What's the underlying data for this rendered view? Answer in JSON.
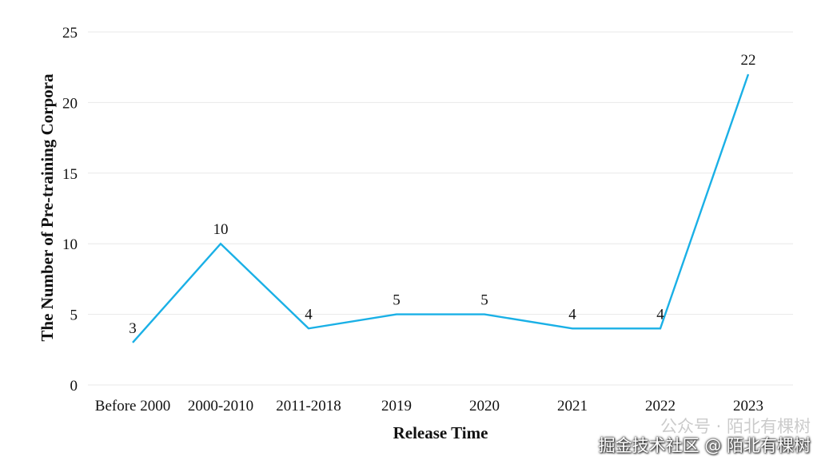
{
  "chart_data": {
    "type": "line",
    "categories": [
      "Before 2000",
      "2000-2010",
      "2011-2018",
      "2019",
      "2020",
      "2021",
      "2022",
      "2023"
    ],
    "values": [
      3,
      10,
      4,
      5,
      5,
      4,
      4,
      22
    ],
    "data_labels": [
      "3",
      "10",
      "4",
      "5",
      "5",
      "4",
      "4",
      "22"
    ],
    "title": "",
    "xlabel": "Release Time",
    "ylabel": "The Number of Pre-training Corpora",
    "ylim": [
      0,
      25
    ],
    "yticks": [
      0,
      5,
      10,
      15,
      20,
      25
    ],
    "grid": "horizontal",
    "line_color": "#1ab0e6"
  },
  "watermark": {
    "line1": "公众号 · 陌北有棵树",
    "line2": "掘金技术社区 @ 陌北有棵树"
  }
}
